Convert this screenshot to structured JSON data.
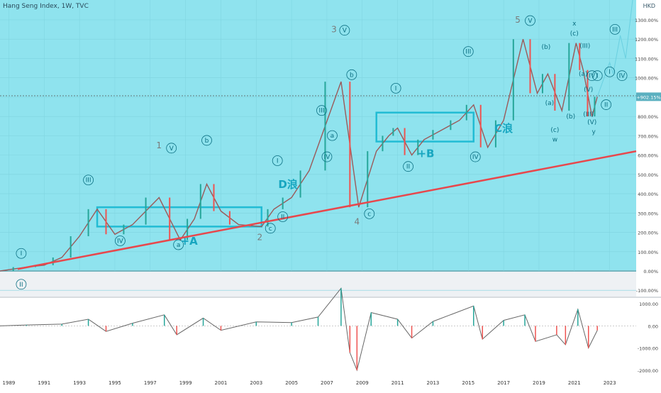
{
  "header": {
    "title": "Hang Seng Index, 1W, TVC",
    "currency": "HKD"
  },
  "colors": {
    "main_bg": "#8fe3ee",
    "lower_band_bg": "#eef1f4",
    "indicator_bg": "#ffffff",
    "trendline": "#e8474c",
    "channel": "#22bcd4",
    "up_candle": "#26a69a",
    "down_candle": "#ef5350",
    "wave_label_cyan": "#17a6c0",
    "wave_label_grey": "#7a7a7a",
    "last_price_badge": "#5bb0c0"
  },
  "chart_data": [
    {
      "type": "line",
      "title": "Hang Seng Index, 1W, TVC",
      "x_ticks": [
        "1989",
        "1991",
        "1993",
        "1995",
        "1997",
        "1999",
        "2001",
        "2003",
        "2005",
        "2007",
        "2009",
        "2011",
        "2013",
        "2015",
        "2017",
        "2019",
        "2021",
        "2023"
      ],
      "y_ticks": [
        "1300.00%",
        "1200.00%",
        "1100.00%",
        "1000.00%",
        "900.00%",
        "800.00%",
        "700.00%",
        "600.00%",
        "500.00%",
        "400.00%",
        "300.00%",
        "200.00%",
        "100.00%",
        "0.00%",
        "-100.00%"
      ],
      "ylim": [
        -100,
        1300
      ],
      "xlim": [
        1988.5,
        2024.5
      ],
      "last_value_label": "+902.15%",
      "series": [
        {
          "x": [
            1988.5,
            1990,
            1991,
            1992,
            1993,
            1994,
            1995,
            1996,
            1997.5,
            1998.7,
            1999.5,
            2000.2,
            2001,
            2002,
            2003.3,
            2004,
            2005,
            2006,
            2007.8,
            2008.8,
            2009.8,
            2010.5,
            2011,
            2011.8,
            2012.5,
            2013.5,
            2014.5,
            2015.3,
            2016.1,
            2017,
            2018.1,
            2018.9,
            2019.5,
            2020.3,
            2021.1,
            2021.5,
            2022,
            2022.3
          ],
          "y": [
            0,
            20,
            30,
            70,
            180,
            320,
            190,
            240,
            380,
            160,
            270,
            450,
            310,
            240,
            230,
            320,
            380,
            520,
            980,
            330,
            620,
            700,
            740,
            600,
            680,
            730,
            780,
            860,
            640,
            780,
            1200,
            920,
            1020,
            830,
            1180,
            1040,
            800,
            902
          ]
        }
      ],
      "channels": [
        {
          "x": [
            1994,
            2003.3
          ],
          "y": [
            330,
            230
          ]
        },
        {
          "x": [
            2009.8,
            2015.3
          ],
          "y": [
            820,
            670
          ]
        }
      ],
      "trendline": {
        "x": [
          1989.5,
          2024.5
        ],
        "y": [
          10,
          620
        ]
      },
      "wave_labels": [
        {
          "text": "I",
          "x": 1989.7,
          "y": 80
        },
        {
          "text": "II",
          "x": 1989.7,
          "y": -80
        },
        {
          "text": "III",
          "x": 1993.5,
          "y": 460
        },
        {
          "text": "IV",
          "x": 1995.3,
          "y": 145
        },
        {
          "text": "1",
          "x": 1997.5,
          "y": 635
        },
        {
          "text": "V",
          "x": 1998.2,
          "y": 625
        },
        {
          "text": "a",
          "x": 1998.6,
          "y": 125
        },
        {
          "text": "+A",
          "x": 1999.2,
          "y": 135
        },
        {
          "text": "b",
          "x": 2000.2,
          "y": 665
        },
        {
          "text": "2",
          "x": 2003.2,
          "y": 160
        },
        {
          "text": "c",
          "x": 2003.8,
          "y": 210
        },
        {
          "text": "I",
          "x": 2004.2,
          "y": 560
        },
        {
          "text": "II",
          "x": 2004.5,
          "y": 270
        },
        {
          "text": "D浪",
          "x": 2004.8,
          "y": 430
        },
        {
          "text": "III",
          "x": 2006.7,
          "y": 820
        },
        {
          "text": "IV",
          "x": 2007.0,
          "y": 580
        },
        {
          "text": "a",
          "x": 2007.3,
          "y": 690
        },
        {
          "text": "3",
          "x": 2007.4,
          "y": 1235
        },
        {
          "text": "V",
          "x": 2008.0,
          "y": 1235
        },
        {
          "text": "b",
          "x": 2008.4,
          "y": 1005
        },
        {
          "text": "4",
          "x": 2008.7,
          "y": 240
        },
        {
          "text": "c",
          "x": 2009.4,
          "y": 285
        },
        {
          "text": "I",
          "x": 2010.9,
          "y": 935
        },
        {
          "text": "II",
          "x": 2011.6,
          "y": 530
        },
        {
          "text": "+B",
          "x": 2012.6,
          "y": 590
        },
        {
          "text": "III",
          "x": 2015.0,
          "y": 1125
        },
        {
          "text": "IV",
          "x": 2015.4,
          "y": 580
        },
        {
          "text": "C浪",
          "x": 2017.0,
          "y": 720
        },
        {
          "text": "5",
          "x": 2017.8,
          "y": 1285
        },
        {
          "text": "V",
          "x": 2018.5,
          "y": 1285
        },
        {
          "text": "(b)",
          "x": 2019.4,
          "y": 1150
        },
        {
          "text": "(a)",
          "x": 2019.6,
          "y": 860
        },
        {
          "text": "(c)",
          "x": 2019.9,
          "y": 720
        },
        {
          "text": "w",
          "x": 2019.9,
          "y": 670
        },
        {
          "text": "(b)",
          "x": 2020.8,
          "y": 790
        },
        {
          "text": "x",
          "x": 2021.0,
          "y": 1270
        },
        {
          "text": "(c)",
          "x": 2021.0,
          "y": 1220
        },
        {
          "text": "(a)",
          "x": 2021.5,
          "y": 1010
        },
        {
          "text": "(III)",
          "x": 2021.6,
          "y": 1155
        },
        {
          "text": "IV",
          "x": 2022.0,
          "y": 1000
        },
        {
          "text": "(V)",
          "x": 2021.8,
          "y": 930
        },
        {
          "text": "I",
          "x": 2022.3,
          "y": 1000
        },
        {
          "text": "(III)",
          "x": 2021.8,
          "y": 800
        },
        {
          "text": "(V)",
          "x": 2022.0,
          "y": 760
        },
        {
          "text": "y",
          "x": 2022.1,
          "y": 710
        },
        {
          "text": "II",
          "x": 2022.8,
          "y": 850
        },
        {
          "text": "III",
          "x": 2023.3,
          "y": 1240
        },
        {
          "text": "IV",
          "x": 2023.7,
          "y": 1000
        },
        {
          "text": "I",
          "x": 2023.0,
          "y": 1020
        }
      ],
      "projection": {
        "x": [
          2022.3,
          2023.0,
          2023.2,
          2023.6,
          2023.9,
          2024.4
        ],
        "y": [
          902,
          1080,
          1020,
          1220,
          1100,
          1480
        ]
      }
    },
    {
      "type": "line",
      "title": "",
      "y_ticks": [
        "1000.00",
        "0.00",
        "-1000.00",
        "-2000.00"
      ],
      "ylim": [
        -2100,
        1100
      ],
      "series": [
        {
          "x": [
            1988.5,
            1990,
            1992,
            1993.5,
            1994.5,
            1996,
            1997.8,
            1998.5,
            2000,
            2001,
            2003,
            2005,
            2006.5,
            2007.8,
            2008.3,
            2008.7,
            2009.5,
            2011,
            2011.8,
            2013,
            2015.3,
            2015.8,
            2017,
            2018.2,
            2018.8,
            2020,
            2020.5,
            2021.2,
            2021.8,
            2022.3
          ],
          "y": [
            0,
            40,
            80,
            300,
            -250,
            120,
            500,
            -400,
            350,
            -200,
            180,
            150,
            400,
            1700,
            -1200,
            -2000,
            600,
            300,
            -550,
            200,
            900,
            -600,
            250,
            500,
            -700,
            -400,
            -850,
            750,
            -1000,
            -200
          ]
        }
      ]
    }
  ]
}
